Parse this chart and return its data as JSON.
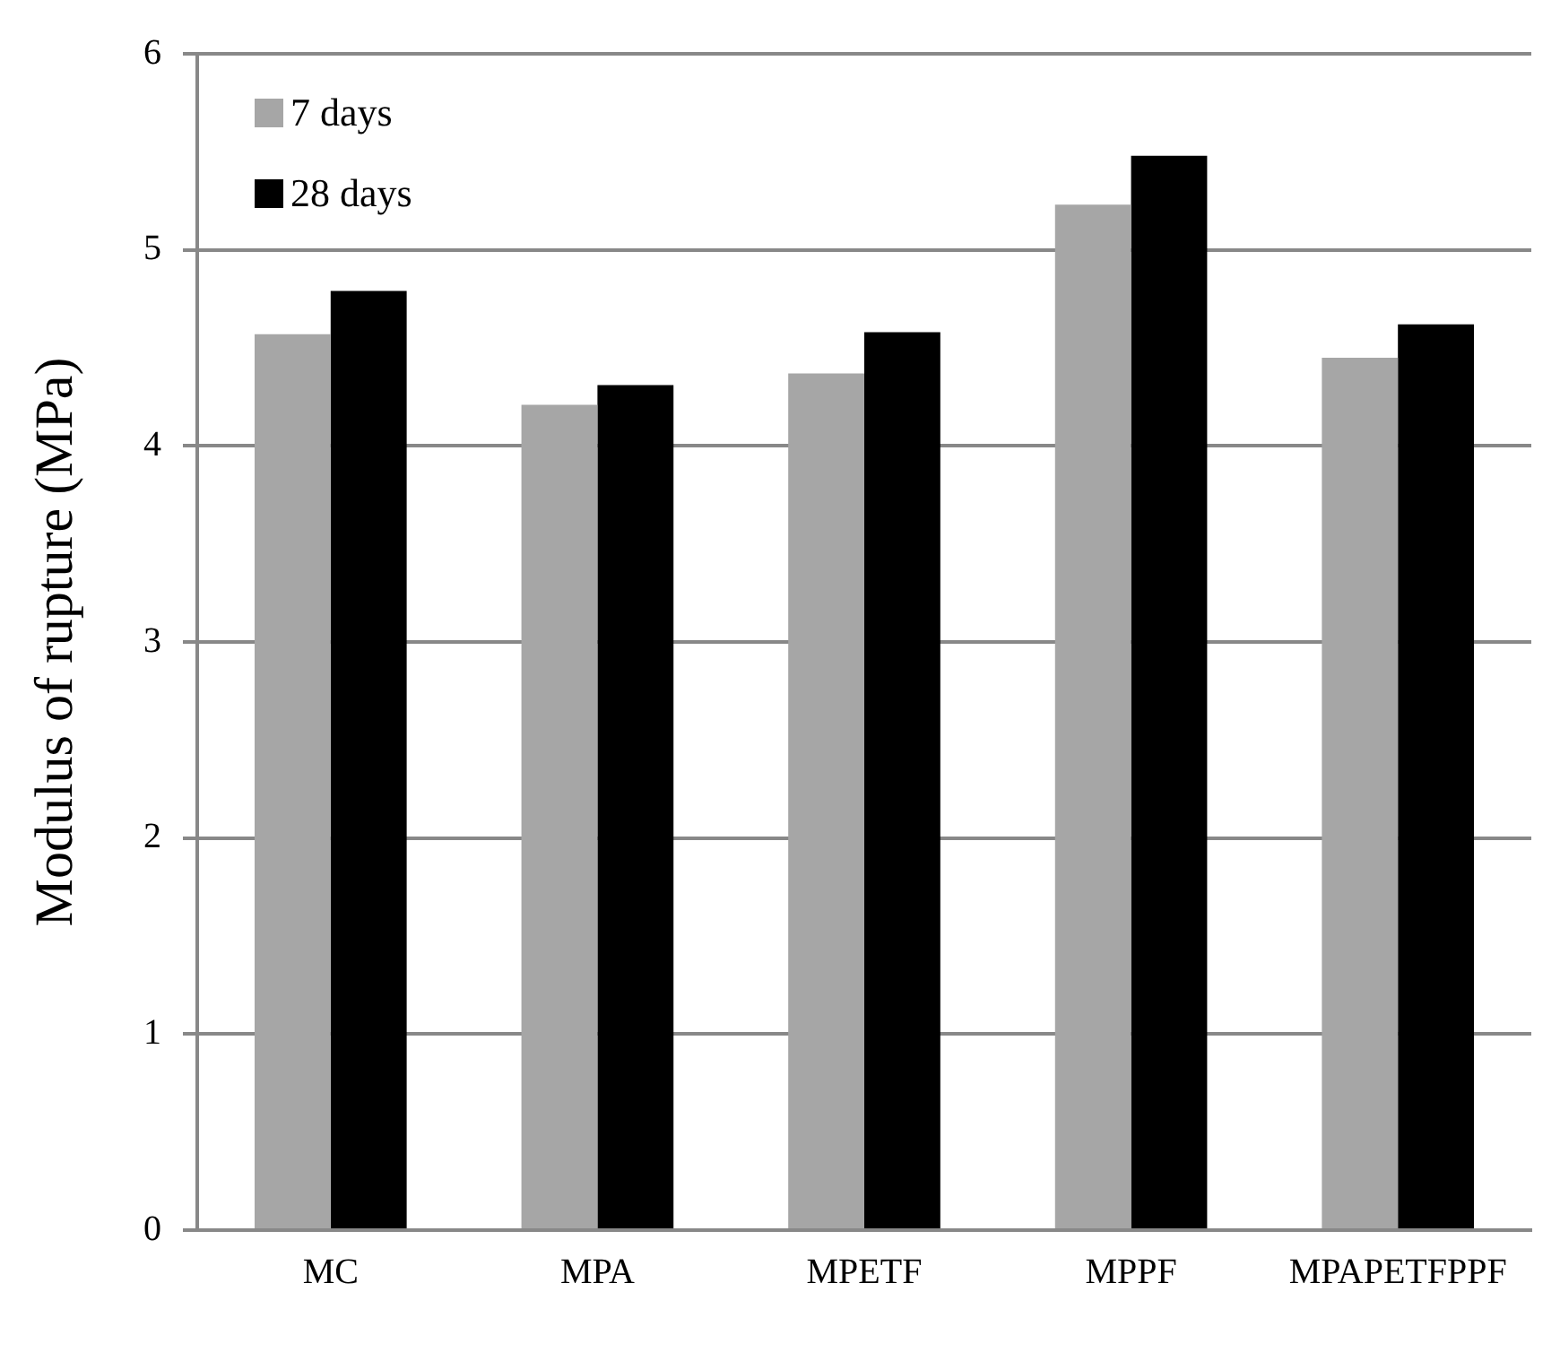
{
  "chart_data": {
    "type": "bar",
    "ylabel": "Modulus of rupture (MPa)",
    "categories": [
      "MC",
      "MPA",
      "MPETF",
      "MPPF",
      "MPAPETFPPF"
    ],
    "series": [
      {
        "name": "7 days",
        "color": "#a6a6a6",
        "values": [
          4.57,
          4.21,
          4.37,
          5.23,
          4.45
        ]
      },
      {
        "name": "28 days",
        "color": "#000000",
        "values": [
          4.79,
          4.31,
          4.58,
          5.48,
          4.62
        ]
      }
    ],
    "ylim": [
      0,
      6
    ],
    "yticks": [
      0,
      1,
      2,
      3,
      4,
      5,
      6
    ],
    "grid": "y",
    "legend": "top left"
  }
}
